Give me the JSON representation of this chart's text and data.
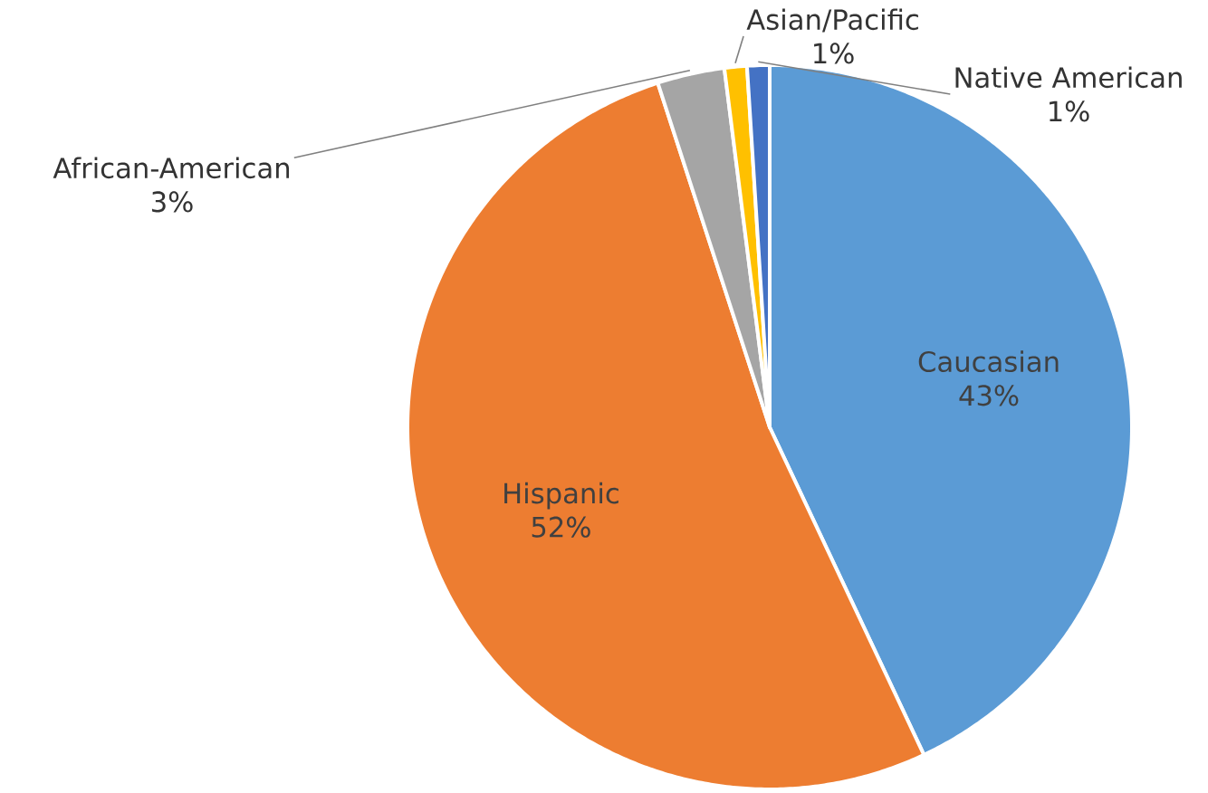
{
  "chart_data": {
    "type": "pie",
    "categories": [
      "Caucasian",
      "Hispanic",
      "African-American",
      "Asian/Pacific",
      "Native American"
    ],
    "values": [
      43,
      52,
      3,
      1,
      1
    ],
    "value_labels": [
      "43%",
      "52%",
      "3%",
      "1%",
      "1%"
    ],
    "colors": [
      "#5b9bd5",
      "#ed7d31",
      "#a5a5a5",
      "#ffc000",
      "#4472c4"
    ]
  }
}
